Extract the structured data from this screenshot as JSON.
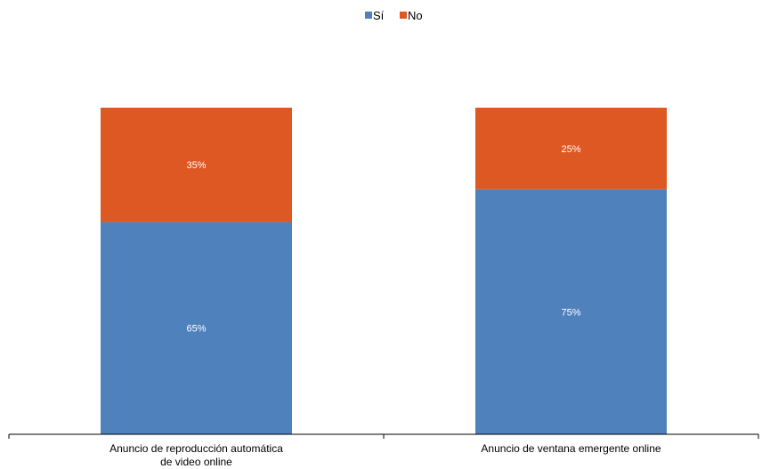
{
  "chart_data": {
    "type": "bar",
    "stacked": true,
    "percent_stacked": true,
    "categories": [
      [
        "Anuncio de reproducción automática",
        "de video online"
      ],
      [
        "Anuncio de ventana emergente online"
      ]
    ],
    "series": [
      {
        "name": "Sí",
        "values": [
          65,
          75
        ],
        "labels": [
          "65%",
          "75%"
        ],
        "color": "#4F81BD"
      },
      {
        "name": "No",
        "values": [
          35,
          25
        ],
        "labels": [
          "35%",
          "25%"
        ],
        "color": "#DD5822"
      }
    ],
    "ylim": [
      0,
      100
    ],
    "grid": false,
    "legend": {
      "position": "top",
      "items": [
        "Sí",
        "No"
      ]
    }
  }
}
